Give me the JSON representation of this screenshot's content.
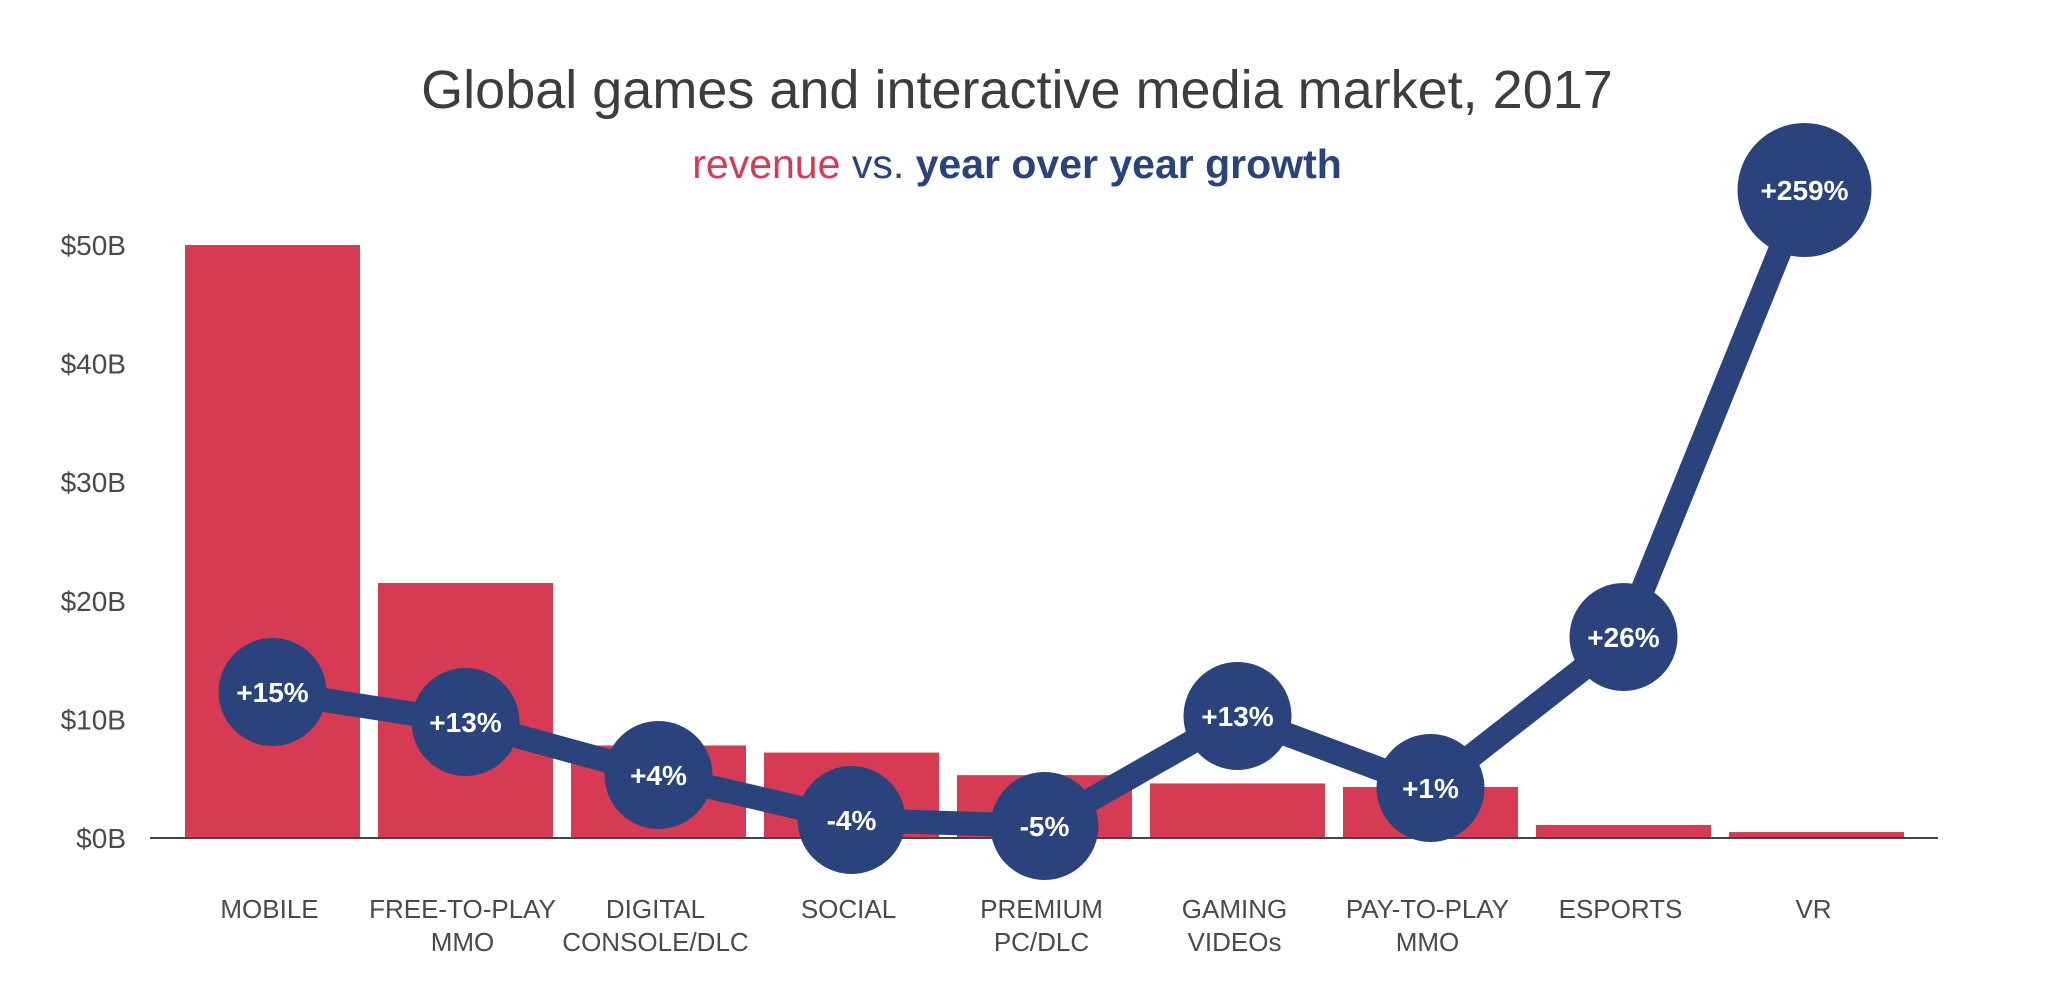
{
  "chart_data": {
    "type": "bar",
    "title": "Global games and interactive media market, 2017",
    "subtitle": {
      "revenue_word": "revenue",
      "vs_word": "vs.",
      "growth_words": "year over year growth"
    },
    "categories": [
      [
        "MOBILE"
      ],
      [
        "FREE-TO-PLAY",
        "MMO"
      ],
      [
        "DIGITAL",
        "CONSOLE/DLC"
      ],
      [
        "SOCIAL"
      ],
      [
        "PREMIUM",
        "PC/DLC"
      ],
      [
        "GAMING",
        "VIDEOs"
      ],
      [
        "PAY-TO-PLAY",
        "MMO"
      ],
      [
        "ESPORTS"
      ],
      [
        "VR"
      ]
    ],
    "y_ticks": [
      "$0B",
      "$10B",
      "$20B",
      "$30B",
      "$40B",
      "$50B"
    ],
    "ylim": [
      0,
      50
    ],
    "series": [
      {
        "name": "revenue",
        "type": "bar",
        "unit": "$B",
        "values": [
          50.0,
          21.5,
          7.8,
          7.2,
          5.3,
          4.6,
          4.3,
          1.1,
          0.5
        ]
      },
      {
        "name": "year over year growth",
        "type": "line",
        "labels": [
          "+15%",
          "+13%",
          "+4%",
          "-4%",
          "-5%",
          "+13%",
          "+1%",
          "+26%",
          "+259%"
        ]
      }
    ],
    "colors": {
      "revenue": "#d63b53",
      "growth": "#2b437c",
      "title": "#3d3d3d",
      "axis": "#444444"
    }
  }
}
